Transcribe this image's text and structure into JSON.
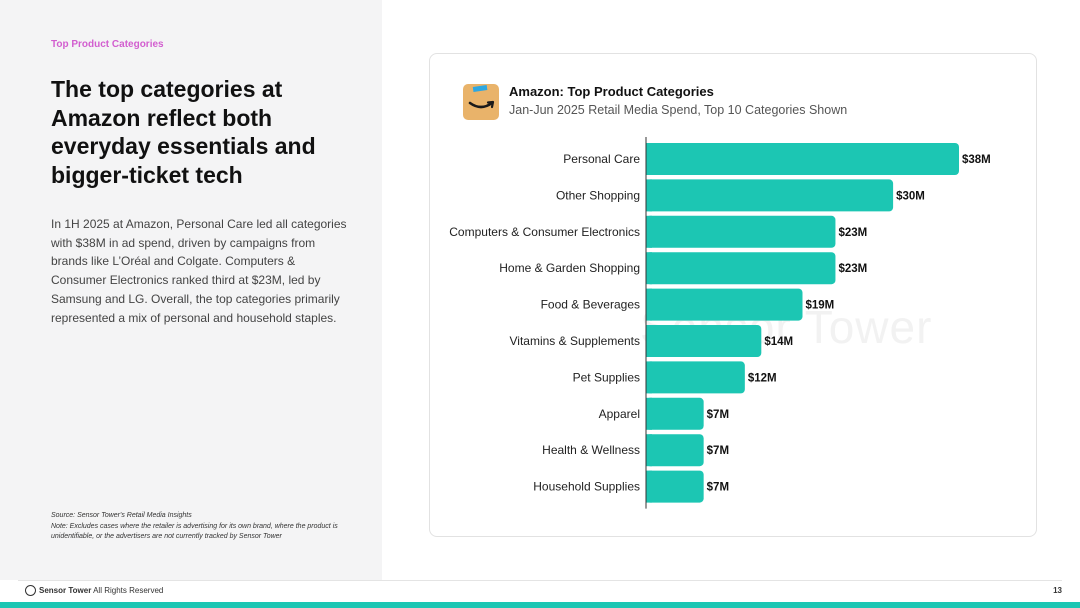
{
  "section_label": "Top Product Categories",
  "headline": "The top categories at Amazon reflect both everyday essentials and bigger-ticket tech",
  "body": "In 1H 2025 at Amazon, Personal Care led all categories with $38M in ad spend, driven by campaigns from brands like L’Oréal and Colgate. Computers & Consumer Electronics ranked third at $23M, led by Samsung and LG. Overall, the top categories primarily represented a mix of personal and household staples.",
  "source": {
    "line1": "Source: Sensor Tower's Retail Media Insights",
    "line2": "Note: Excludes cases where the retailer is advertising for its own brand, where the product is unidentifiable, or the advertisers are not currently tracked by Sensor Tower"
  },
  "footer": {
    "brand": "Sensor Tower",
    "rights": " All Rights Reserved",
    "page_number": "13"
  },
  "watermark": "Sensor Tower",
  "icons": {
    "amazon": "amazon-smile-logo-icon",
    "footer": "sensor-tower-logo-icon"
  },
  "colors": {
    "bar": "#1cc6b3",
    "accent_label": "#d25ecf",
    "amazon_bg": "#e9b36a"
  },
  "chart_data": {
    "type": "bar",
    "orientation": "horizontal",
    "title": "Amazon: Top Product Categories",
    "subtitle": "Jan-Jun 2025 Retail Media Spend, Top 10 Categories Shown",
    "categories": [
      "Personal Care",
      "Other Shopping",
      "Computers & Consumer Electronics",
      "Home & Garden Shopping",
      "Food & Beverages",
      "Vitamins & Supplements",
      "Pet Supplies",
      "Apparel",
      "Health & Wellness",
      "Household Supplies"
    ],
    "values": [
      38,
      30,
      23,
      23,
      19,
      14,
      12,
      7,
      7,
      7
    ],
    "value_labels": [
      "$38M",
      "$30M",
      "$23M",
      "$23M",
      "$19M",
      "$14M",
      "$12M",
      "$7M",
      "$7M",
      "$7M"
    ],
    "unit": "USD millions",
    "xlim": [
      0,
      38
    ],
    "grid": false,
    "legend": false
  }
}
